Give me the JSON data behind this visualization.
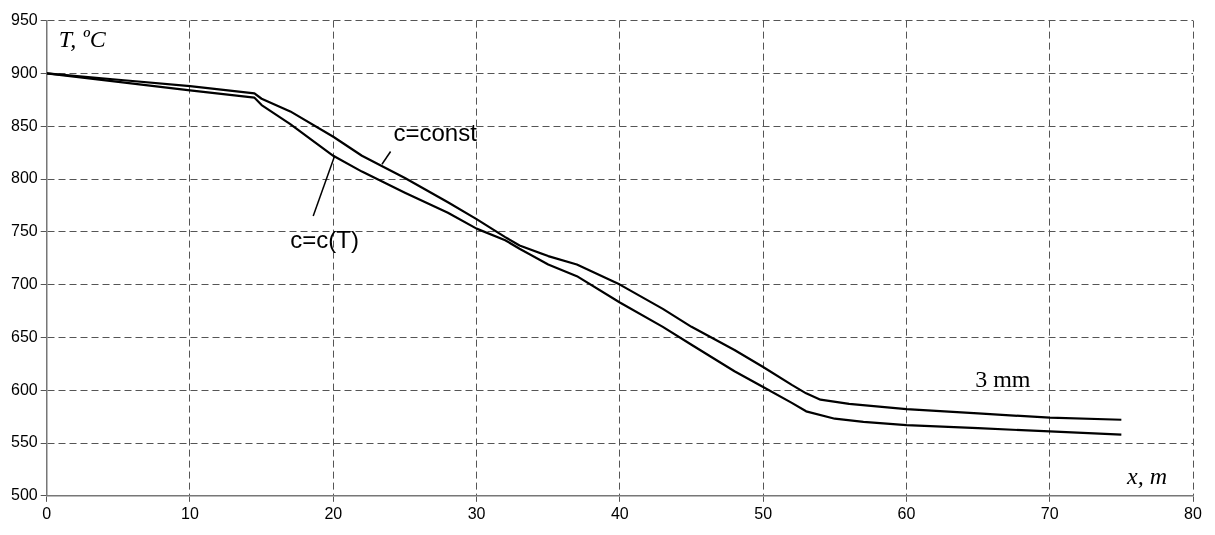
{
  "chart_data": {
    "type": "line",
    "xlabel": "x, m",
    "ylabel": "T, ºC",
    "annotations": [
      "3 mm"
    ],
    "xlim": [
      0,
      80
    ],
    "xticks": [
      0,
      10,
      20,
      30,
      40,
      50,
      60,
      70,
      80
    ],
    "ylim": [
      500,
      950
    ],
    "yticks": [
      500,
      550,
      600,
      650,
      700,
      750,
      800,
      850,
      900,
      950
    ],
    "grid": true,
    "legend": false,
    "marker": "none",
    "line_style": "solid",
    "series": [
      {
        "name": "c=const",
        "color": "#000000",
        "x": [
          0,
          5,
          10,
          14.5,
          15,
          17,
          20,
          22,
          25,
          28,
          30,
          32,
          33,
          35,
          37,
          40,
          43,
          45,
          48,
          50,
          52,
          53,
          54,
          56,
          60,
          65,
          70,
          75
        ],
        "values": [
          900,
          894,
          888,
          881,
          876,
          864,
          840,
          822,
          801,
          778,
          762,
          745,
          737,
          727,
          719,
          700,
          677,
          660,
          638,
          622,
          605,
          597,
          591,
          587,
          582,
          578,
          574,
          572
        ]
      },
      {
        "name": "c=c(T)",
        "color": "#000000",
        "x": [
          0,
          5,
          10,
          14.5,
          15,
          17,
          20,
          22,
          25,
          28,
          30,
          32,
          33,
          35,
          37,
          40,
          43,
          45,
          48,
          50,
          52,
          53,
          55,
          57,
          60,
          65,
          70,
          75
        ],
        "values": [
          900,
          892,
          884,
          877,
          870,
          852,
          822,
          807,
          787,
          768,
          753,
          742,
          734,
          719,
          708,
          683,
          660,
          643,
          618,
          603,
          588,
          580,
          573,
          570,
          567,
          564,
          561,
          558
        ]
      }
    ]
  }
}
